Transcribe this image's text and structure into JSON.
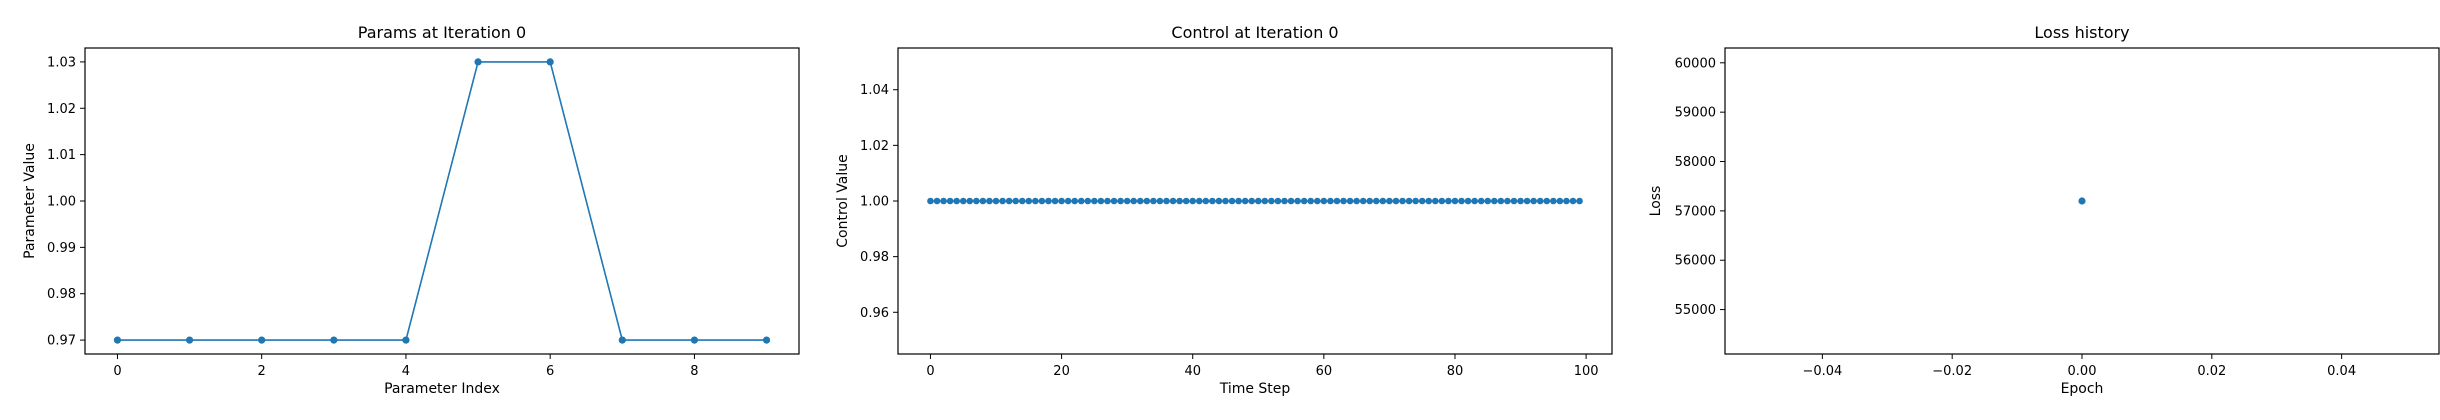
{
  "chart_data": [
    {
      "type": "line",
      "title": "Params at Iteration 0",
      "xlabel": "Parameter Index",
      "ylabel": "Parameter Value",
      "x": [
        0,
        1,
        2,
        3,
        4,
        5,
        6,
        7,
        8,
        9
      ],
      "series": [
        {
          "values": [
            0.97,
            0.97,
            0.97,
            0.97,
            0.97,
            1.03,
            1.03,
            0.97,
            0.97,
            0.97
          ],
          "color": "#1f77b4",
          "markers": true
        }
      ],
      "xlim": [
        -0.45,
        9.45
      ],
      "ylim": [
        0.967,
        1.033
      ],
      "xticks": [
        0,
        2,
        4,
        6,
        8
      ],
      "xtick_labels": [
        "0",
        "2",
        "4",
        "6",
        "8"
      ],
      "yticks": [
        0.97,
        0.98,
        0.99,
        1.0,
        1.01,
        1.02,
        1.03
      ],
      "ytick_labels": [
        "0.97",
        "0.98",
        "0.99",
        "1.00",
        "1.01",
        "1.02",
        "1.03"
      ],
      "grid": false
    },
    {
      "type": "line",
      "title": "Control at Iteration 0",
      "xlabel": "Time Step",
      "ylabel": "Control Value",
      "x_start": 0,
      "x_end": 99,
      "series": [
        {
          "constant_value": 1.0,
          "color": "#1f77b4",
          "markers": true
        }
      ],
      "xlim": [
        -4.95,
        103.95
      ],
      "ylim": [
        0.945,
        1.055
      ],
      "xticks": [
        0,
        20,
        40,
        60,
        80,
        100
      ],
      "xtick_labels": [
        "0",
        "20",
        "40",
        "60",
        "80",
        "100"
      ],
      "yticks": [
        0.96,
        0.98,
        1.0,
        1.02,
        1.04
      ],
      "ytick_labels": [
        "0.96",
        "0.98",
        "1.00",
        "1.02",
        "1.04"
      ],
      "grid": false
    },
    {
      "type": "scatter",
      "title": "Loss history",
      "xlabel": "Epoch",
      "ylabel": "Loss",
      "x": [
        0
      ],
      "series": [
        {
          "values": [
            57200
          ],
          "color": "#1f77b4"
        }
      ],
      "xlim": [
        -0.055,
        0.055
      ],
      "ylim": [
        54100,
        60300
      ],
      "xticks": [
        -0.04,
        -0.02,
        0.0,
        0.02,
        0.04
      ],
      "xtick_labels": [
        "−0.04",
        "−0.02",
        "0.00",
        "0.02",
        "0.04"
      ],
      "yticks": [
        55000,
        56000,
        57000,
        58000,
        59000,
        60000
      ],
      "ytick_labels": [
        "55000",
        "56000",
        "57000",
        "58000",
        "59000",
        "60000"
      ],
      "grid": false
    }
  ]
}
